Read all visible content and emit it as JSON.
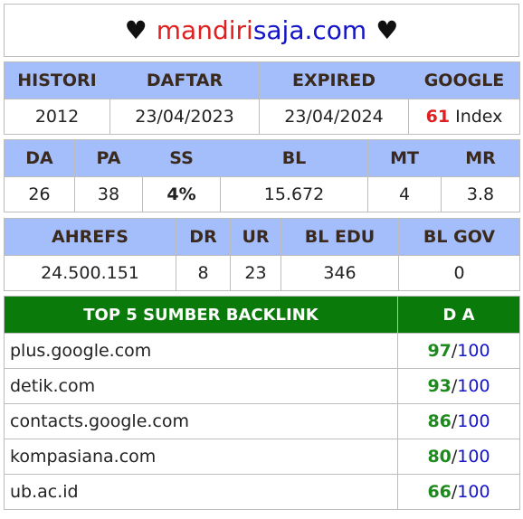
{
  "title": {
    "heart_left": "♥",
    "part1": "mandiri",
    "part2": "saja.com",
    "heart_right": "♥"
  },
  "table1": {
    "headers": [
      "HISTORI",
      "DAFTAR",
      "EXPIRED",
      "GOOGLE"
    ],
    "values": {
      "histori": "2012",
      "daftar": "23/04/2023",
      "expired": "23/04/2024",
      "google_count": "61",
      "google_suffix": "Index"
    }
  },
  "table2": {
    "headers": [
      "DA",
      "PA",
      "SS",
      "BL",
      "MT",
      "MR"
    ],
    "values": [
      "26",
      "38",
      "4%",
      "15.672",
      "4",
      "3.8"
    ]
  },
  "table3": {
    "headers": [
      "AHREFS",
      "DR",
      "UR",
      "BL EDU",
      "BL GOV"
    ],
    "values": [
      "24.500.151",
      "8",
      "23",
      "346",
      "0"
    ]
  },
  "backlinks": {
    "header_source": "TOP 5 SUMBER BACKLINK",
    "header_da": "D A",
    "rows": [
      {
        "domain": "plus.google.com",
        "score": "97",
        "sep": "/",
        "max": "100"
      },
      {
        "domain": "detik.com",
        "score": "93",
        "sep": "/",
        "max": "100"
      },
      {
        "domain": "contacts.google.com",
        "score": "86",
        "sep": "/",
        "max": "100"
      },
      {
        "domain": "kompasiana.com",
        "score": "80",
        "sep": "/",
        "max": "100"
      },
      {
        "domain": "ub.ac.id",
        "score": "66",
        "sep": "/",
        "max": "100"
      }
    ]
  },
  "colors": {
    "header_bg": "#a4bdfb",
    "backlink_header_bg": "#0a7a0a",
    "red": "#e02020",
    "blue": "#1414c8",
    "green": "#1e8a1e"
  }
}
